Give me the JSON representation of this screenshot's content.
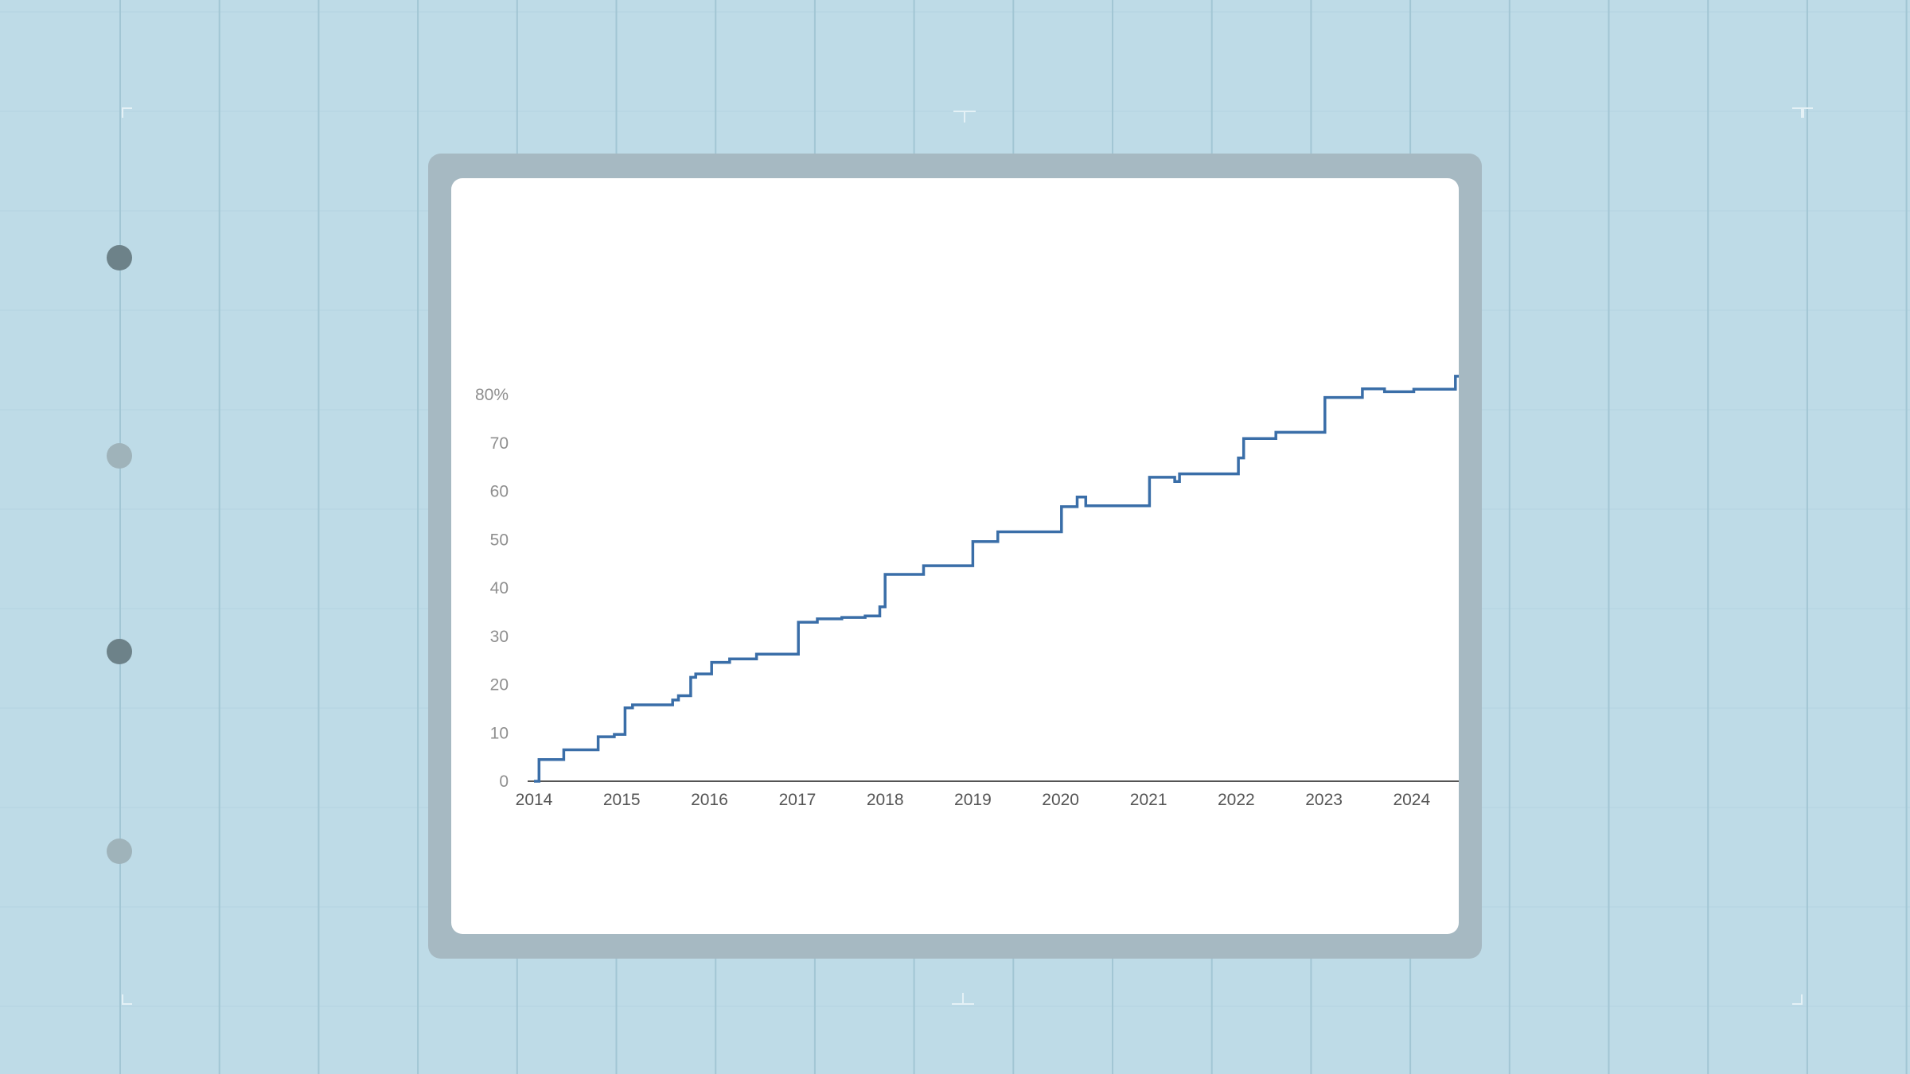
{
  "chart_data": {
    "type": "line",
    "step": true,
    "x_unit": "date",
    "x_tick_labels": [
      "2014",
      "2015",
      "2016",
      "2017",
      "2018",
      "2019",
      "2020",
      "2021",
      "2022",
      "2023",
      "2024"
    ],
    "y_tick_labels": [
      "0",
      "10",
      "20",
      "30",
      "40",
      "50",
      "60",
      "70",
      "80%"
    ],
    "xlim": [
      "2014-01-01",
      "2024-07-15"
    ],
    "ylim": [
      0,
      80
    ],
    "grid": false,
    "title": "",
    "xlabel": "",
    "ylabel": "",
    "line_color": "#3a6ea8",
    "series": [
      {
        "points": [
          [
            "2014-01-01",
            0
          ],
          [
            "2014-01-20",
            0
          ],
          [
            "2014-01-22",
            4.5
          ],
          [
            "2014-05-01",
            4.5
          ],
          [
            "2014-05-05",
            6.5
          ],
          [
            "2014-09-10",
            6.5
          ],
          [
            "2014-09-25",
            9.2
          ],
          [
            "2014-12-01",
            9.7
          ],
          [
            "2015-01-10",
            9.7
          ],
          [
            "2015-01-15",
            15.2
          ],
          [
            "2015-02-15",
            15.8
          ],
          [
            "2015-07-20",
            15.8
          ],
          [
            "2015-08-01",
            16.8
          ],
          [
            "2015-08-25",
            17.7
          ],
          [
            "2015-10-10",
            17.7
          ],
          [
            "2015-10-15",
            21.5
          ],
          [
            "2015-11-05",
            22.2
          ],
          [
            "2016-01-01",
            22.2
          ],
          [
            "2016-01-10",
            24.6
          ],
          [
            "2016-03-20",
            24.6
          ],
          [
            "2016-03-25",
            25.3
          ],
          [
            "2016-07-10",
            25.3
          ],
          [
            "2016-07-15",
            26.3
          ],
          [
            "2017-01-01",
            26.3
          ],
          [
            "2017-01-05",
            32.9
          ],
          [
            "2017-03-20",
            32.9
          ],
          [
            "2017-03-25",
            33.6
          ],
          [
            "2017-07-01",
            33.6
          ],
          [
            "2017-07-05",
            33.9
          ],
          [
            "2017-10-01",
            33.9
          ],
          [
            "2017-10-10",
            34.2
          ],
          [
            "2017-12-01",
            34.2
          ],
          [
            "2017-12-10",
            36.1
          ],
          [
            "2018-01-01",
            42.8
          ],
          [
            "2018-06-01",
            42.8
          ],
          [
            "2018-06-10",
            44.6
          ],
          [
            "2018-12-10",
            44.6
          ],
          [
            "2019-01-01",
            49.6
          ],
          [
            "2019-04-01",
            49.6
          ],
          [
            "2019-04-15",
            51.6
          ],
          [
            "2019-12-05",
            51.6
          ],
          [
            "2020-01-05",
            56.8
          ],
          [
            "2020-03-01",
            56.8
          ],
          [
            "2020-03-10",
            58.8
          ],
          [
            "2020-04-10",
            58.8
          ],
          [
            "2020-04-15",
            57.0
          ],
          [
            "2020-12-10",
            57.0
          ],
          [
            "2021-01-05",
            62.9
          ],
          [
            "2021-04-15",
            62.9
          ],
          [
            "2021-04-20",
            62.0
          ],
          [
            "2021-05-01",
            62.0
          ],
          [
            "2021-05-10",
            63.6
          ],
          [
            "2021-12-10",
            63.6
          ],
          [
            "2022-01-10",
            66.9
          ],
          [
            "2022-02-01",
            70.9
          ],
          [
            "2022-06-01",
            70.9
          ],
          [
            "2022-06-15",
            72.2
          ],
          [
            "2022-12-15",
            72.2
          ],
          [
            "2023-01-05",
            79.4
          ],
          [
            "2023-06-01",
            79.4
          ],
          [
            "2023-06-10",
            81.2
          ],
          [
            "2023-09-01",
            81.2
          ],
          [
            "2023-09-10",
            80.6
          ],
          [
            "2024-01-01",
            80.6
          ],
          [
            "2024-01-10",
            81.1
          ],
          [
            "2024-06-10",
            81.1
          ],
          [
            "2024-07-01",
            83.8
          ],
          [
            "2024-07-15",
            83.8
          ]
        ]
      }
    ]
  },
  "decor": {
    "background_color": "#bedbe7",
    "grid_line_color": "#a2c6d4",
    "frame_color": "#a6b9c2",
    "panel_color": "#ffffff",
    "tick_text_color": "#8f8f8f",
    "axis_color": "#555555",
    "side_dot_colors": [
      "#6d8289",
      "#9fb3ba",
      "#6d8289",
      "#9fb3ba"
    ]
  }
}
